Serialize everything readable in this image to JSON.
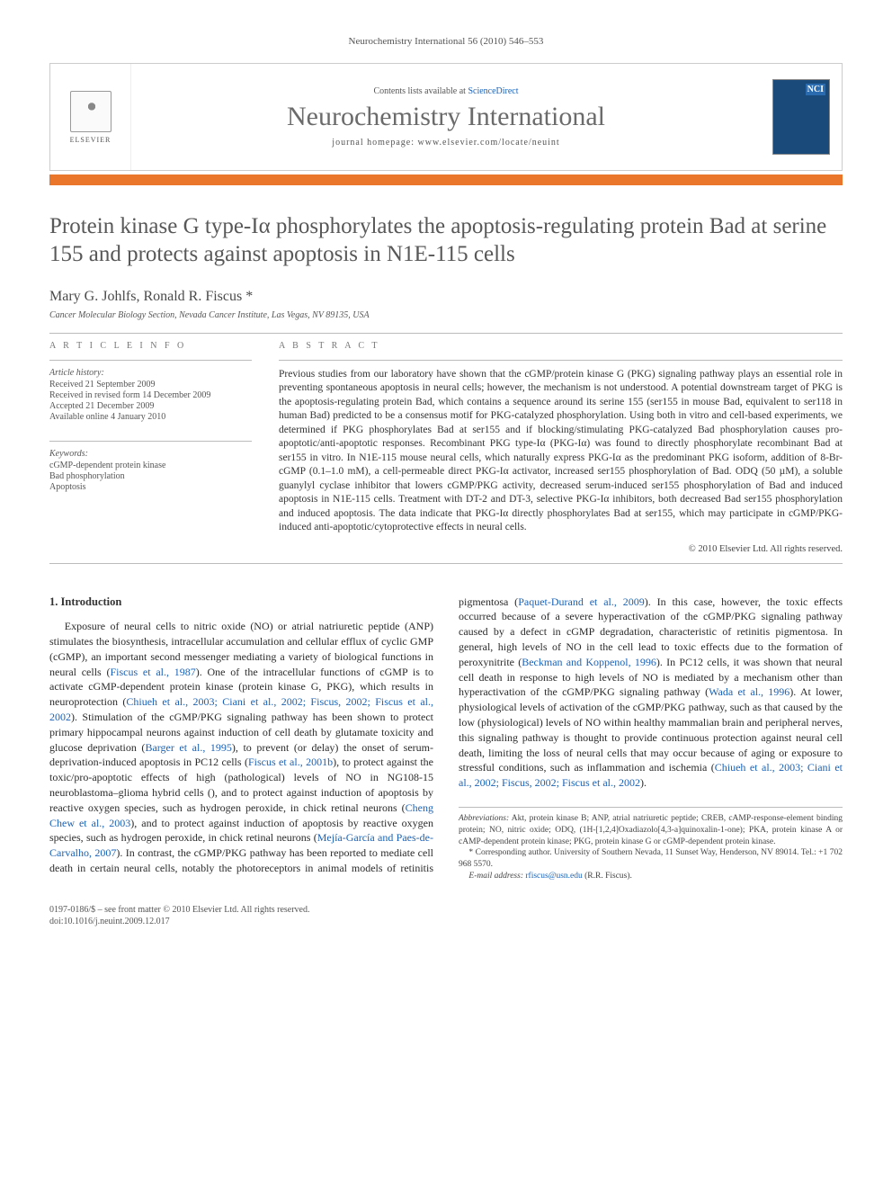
{
  "runningHead": "Neurochemistry International 56 (2010) 546–553",
  "banner": {
    "contentsPrefix": "Contents lists available at ",
    "contentsLink": "ScienceDirect",
    "journal": "Neurochemistry International",
    "homepagePrefix": "journal homepage: ",
    "homepageUrl": "www.elsevier.com/locate/neuint",
    "publisherWord": "ELSEVIER",
    "coverAbbrev": "NCI",
    "colors": {
      "orangeBar": "#e9762b",
      "coverBg": "#1a4a7a",
      "linkColor": "#1b62b5",
      "journalNameColor": "#6b6b6b"
    }
  },
  "title": "Protein kinase G type-Iα phosphorylates the apoptosis-regulating protein Bad at serine 155 and protects against apoptosis in N1E-115 cells",
  "authors": "Mary G. Johlfs, Ronald R. Fiscus *",
  "affiliation": "Cancer Molecular Biology Section, Nevada Cancer Institute, Las Vegas, NV 89135, USA",
  "articleInfo": {
    "heading": "A R T I C L E   I N F O",
    "historyLabel": "Article history:",
    "received": "Received 21 September 2009",
    "revised": "Received in revised form 14 December 2009",
    "accepted": "Accepted 21 December 2009",
    "online": "Available online 4 January 2010",
    "keywordsLabel": "Keywords:",
    "keywords": [
      "cGMP-dependent protein kinase",
      "Bad phosphorylation",
      "Apoptosis"
    ]
  },
  "abstract": {
    "heading": "A B S T R A C T",
    "text": "Previous studies from our laboratory have shown that the cGMP/protein kinase G (PKG) signaling pathway plays an essential role in preventing spontaneous apoptosis in neural cells; however, the mechanism is not understood. A potential downstream target of PKG is the apoptosis-regulating protein Bad, which contains a sequence around its serine 155 (ser155 in mouse Bad, equivalent to ser118 in human Bad) predicted to be a consensus motif for PKG-catalyzed phosphorylation. Using both in vitro and cell-based experiments, we determined if PKG phosphorylates Bad at ser155 and if blocking/stimulating PKG-catalyzed Bad phosphorylation causes pro-apoptotic/anti-apoptotic responses. Recombinant PKG type-Iα (PKG-Iα) was found to directly phosphorylate recombinant Bad at ser155 in vitro. In N1E-115 mouse neural cells, which naturally express PKG-Iα as the predominant PKG isoform, addition of 8-Br-cGMP (0.1–1.0 mM), a cell-permeable direct PKG-Iα activator, increased ser155 phosphorylation of Bad. ODQ (50 µM), a soluble guanylyl cyclase inhibitor that lowers cGMP/PKG activity, decreased serum-induced ser155 phosphorylation of Bad and induced apoptosis in N1E-115 cells. Treatment with DT-2 and DT-3, selective PKG-Iα inhibitors, both decreased Bad ser155 phosphorylation and induced apoptosis. The data indicate that PKG-Iα directly phosphorylates Bad at ser155, which may participate in cGMP/PKG-induced anti-apoptotic/cytoprotective effects in neural cells.",
    "copyright": "© 2010 Elsevier Ltd. All rights reserved."
  },
  "section1": {
    "heading": "1. Introduction",
    "para1a": "Exposure of neural cells to nitric oxide (NO) or atrial natriuretic peptide (ANP) stimulates the biosynthesis, intracellular accumulation and cellular efflux of cyclic GMP (cGMP), an important second messenger mediating a variety of biological functions in neural cells (",
    "cite1": "Fiscus et al., 1987",
    "para1b": "). One of the intracellular functions of cGMP is to activate cGMP-dependent protein kinase (protein kinase G, PKG), which results in neuroprotection (",
    "cite2": "Chiueh et al., 2003; Ciani et al., 2002; Fiscus, 2002; Fiscus et al., 2002",
    "para1c": "). Stimulation of the cGMP/PKG signaling pathway has been shown to protect primary hippocampal neurons against induction of cell death by glutamate toxicity and glucose deprivation (",
    "cite3": "Barger et al., 1995",
    "para1d": "), to prevent (or delay) the onset of serum-deprivation-induced apoptosis in PC12 cells (",
    "cite4": "Fiscus et al., 2001b",
    "para1e": "), to protect against the toxic/pro-apoptotic effects of high (pathological) levels of NO in NG108-15 neuroblastoma–glioma hybrid cells (",
    "cite5": "Cheng Chew et al., 2003",
    "para1f": "), and to protect against induction of apoptosis by reactive oxygen species, such as hydrogen peroxide, in chick retinal neurons (",
    "cite6": "Mejía-García and Paes-de-Carvalho, 2007",
    "para1g": "). In contrast, the cGMP/PKG pathway has been reported to mediate cell death in certain neural cells, notably the photoreceptors in animal models of retinitis pigmentosa (",
    "cite7": "Paquet-Durand et al., 2009",
    "para1h": "). In this case, however, the toxic effects occurred because of a severe hyperactivation of the cGMP/PKG signaling pathway caused by a defect in cGMP degradation, characteristic of retinitis pigmentosa. In general, high levels of NO in the cell lead to toxic effects due to the formation of peroxynitrite (",
    "cite8": "Beckman and Koppenol, 1996",
    "para1i": "). In PC12 cells, it was shown that neural cell death in response to high levels of NO is mediated by a mechanism other than hyperactivation of the cGMP/PKG signaling pathway (",
    "cite9": "Wada et al., 1996",
    "para1j": "). At lower, physiological levels of activation of the cGMP/PKG pathway, such as that caused by the low (physiological) levels of NO within healthy mammalian brain and peripheral nerves, this signaling pathway is thought to provide continuous protection against neural cell death, limiting the loss of neural cells that may occur because of aging or exposure to stressful conditions, such as inflammation and ischemia (",
    "cite10": "Chiueh et al., 2003; Ciani et al., 2002; Fiscus, 2002; Fiscus et al., 2002",
    "para1k": ")."
  },
  "footnotes": {
    "abbrevLabel": "Abbreviations:",
    "abbrev": " Akt, protein kinase B; ANP, atrial natriuretic peptide; CREB, cAMP-response-element binding protein; NO, nitric oxide; ODQ, (1H-[1,2,4]Oxadiazolo[4,3-a]quinoxalin-1-one); PKA, protein kinase A or cAMP-dependent protein kinase; PKG, protein kinase G or cGMP-dependent protein kinase.",
    "corr": "* Corresponding author. University of Southern Nevada, 11 Sunset Way, Henderson, NV 89014. Tel.: +1 702 968 5570.",
    "emailLabel": "E-mail address:",
    "email": " rfiscus@usn.edu ",
    "emailSuffix": "(R.R. Fiscus)."
  },
  "bottom": {
    "line1": "0197-0186/$ – see front matter © 2010 Elsevier Ltd. All rights reserved.",
    "line2": "doi:10.1016/j.neuint.2009.12.017"
  }
}
